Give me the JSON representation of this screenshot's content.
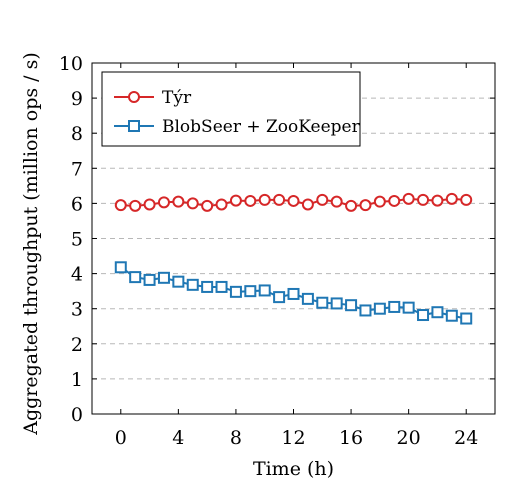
{
  "chart_data": {
    "type": "line",
    "title": "",
    "xlabel": "Time (h)",
    "ylabel": "Aggregated throughput (million ops / s)",
    "xlim": [
      -2,
      26
    ],
    "ylim": [
      0,
      10
    ],
    "xticks": [
      0,
      4,
      8,
      12,
      16,
      20,
      24
    ],
    "yticks": [
      0,
      1,
      2,
      3,
      4,
      5,
      6,
      7,
      8,
      9,
      10
    ],
    "grid": "horizontal dashed",
    "legend_position": "top-left",
    "x": [
      0,
      1,
      2,
      3,
      4,
      5,
      6,
      7,
      8,
      9,
      10,
      11,
      12,
      13,
      14,
      15,
      16,
      17,
      18,
      19,
      20,
      21,
      22,
      23,
      24
    ],
    "series": [
      {
        "name": "Týr",
        "color": "#d62728",
        "marker": "circle",
        "values": [
          5.95,
          5.93,
          5.97,
          6.03,
          6.05,
          6.0,
          5.93,
          5.97,
          6.08,
          6.07,
          6.1,
          6.1,
          6.07,
          5.97,
          6.1,
          6.05,
          5.93,
          5.95,
          6.05,
          6.07,
          6.13,
          6.1,
          6.08,
          6.13,
          6.1
        ]
      },
      {
        "name": "BlobSeer + ZooKeeper",
        "color": "#1f77b4",
        "marker": "square",
        "values": [
          4.18,
          3.9,
          3.82,
          3.88,
          3.77,
          3.68,
          3.62,
          3.62,
          3.48,
          3.5,
          3.52,
          3.33,
          3.42,
          3.28,
          3.17,
          3.15,
          3.1,
          2.95,
          3.0,
          3.05,
          3.03,
          2.82,
          2.9,
          2.8,
          2.72
        ]
      }
    ]
  }
}
